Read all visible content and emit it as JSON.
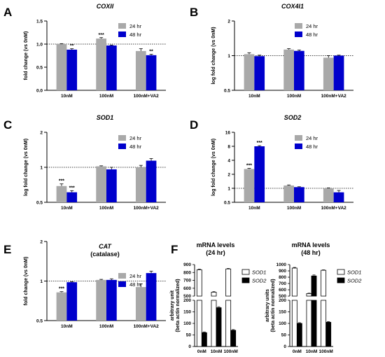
{
  "colors": {
    "series_24hr": "#a9a9a9",
    "series_48hr": "#0000cc",
    "sod1_fill": "#ffffff",
    "sod2_fill": "#000000"
  },
  "chart_data": [
    {
      "panel": "A",
      "type": "bar",
      "title": "COXII",
      "ylabel": "fold change (vs 0nM)",
      "scale": "linear",
      "ylim": [
        0.0,
        1.5
      ],
      "yticks": [
        "0.0",
        "0.5",
        "1.0",
        "1.5"
      ],
      "reference_line": 1.0,
      "categories": [
        "10nM",
        "100nM",
        "100nM+VA2"
      ],
      "series": [
        {
          "name": "24 hr",
          "values": [
            1.0,
            1.12,
            0.85
          ],
          "errors": [
            0.01,
            0.02,
            0.05
          ],
          "stars": [
            "",
            "***",
            ""
          ]
        },
        {
          "name": "48 hr",
          "values": [
            0.88,
            0.97,
            0.76
          ],
          "errors": [
            0.02,
            0.01,
            0.02
          ],
          "stars": [
            "**",
            "",
            "**"
          ]
        }
      ],
      "legend": "top-right"
    },
    {
      "panel": "B",
      "type": "bar",
      "title": "COX4I1",
      "ylabel": "log fold change (vs 0nM)",
      "scale": "log2",
      "ylim": [
        0.5,
        2
      ],
      "yticks": [
        "0.5",
        "1",
        "2"
      ],
      "reference_line": 1.0,
      "categories": [
        "10nM",
        "100nM",
        "100nM+VA2"
      ],
      "series": [
        {
          "name": "24 hr",
          "values": [
            1.03,
            1.13,
            0.96
          ],
          "errors": [
            0.03,
            0.02,
            0.04
          ],
          "stars": [
            "",
            "",
            ""
          ]
        },
        {
          "name": "48 hr",
          "values": [
            0.99,
            1.1,
            1.0
          ],
          "errors": [
            0.02,
            0.02,
            0.01
          ],
          "stars": [
            "",
            "",
            ""
          ]
        }
      ],
      "legend": "top-right"
    },
    {
      "panel": "C",
      "type": "bar",
      "title": "SOD1",
      "ylabel": "log fold change (vs 0nM)",
      "scale": "log2",
      "ylim": [
        0.5,
        2
      ],
      "yticks": [
        "0.5",
        "1",
        "2"
      ],
      "reference_line": 1.0,
      "categories": [
        "10nM",
        "100nM",
        "100nM+VA2"
      ],
      "series": [
        {
          "name": "24 hr",
          "values": [
            0.69,
            1.02,
            1.0
          ],
          "errors": [
            0.03,
            0.01,
            0.04
          ],
          "stars": [
            "***",
            "",
            ""
          ]
        },
        {
          "name": "48 hr",
          "values": [
            0.61,
            0.96,
            1.14
          ],
          "errors": [
            0.02,
            0.04,
            0.05
          ],
          "stars": [
            "***",
            "",
            ""
          ]
        }
      ],
      "legend": "top-right"
    },
    {
      "panel": "D",
      "type": "bar",
      "title": "SOD2",
      "ylabel": "log fold change (vs 0nM)",
      "scale": "log2",
      "ylim": [
        0.5,
        16
      ],
      "yticks": [
        "0.5",
        "1",
        "2",
        "4",
        "8",
        "16"
      ],
      "reference_line": 1.0,
      "categories": [
        "10nM",
        "100nM",
        "100nM+VA2"
      ],
      "series": [
        {
          "name": "24 hr",
          "values": [
            2.6,
            1.15,
            1.0
          ],
          "errors": [
            0.08,
            0.03,
            0.02
          ],
          "stars": [
            "***",
            "",
            ""
          ]
        },
        {
          "name": "48 hr",
          "values": [
            8.0,
            1.06,
            0.82
          ],
          "errors": [
            0.25,
            0.02,
            0.08
          ],
          "stars": [
            "***",
            "",
            ""
          ]
        }
      ],
      "legend": "top-right"
    },
    {
      "panel": "E",
      "type": "bar",
      "title": "CAT",
      "subtitle": "(catalase)",
      "ylabel": "fold change (vs 0nM)",
      "scale": "log2",
      "ylim": [
        0.5,
        2
      ],
      "yticks": [
        "0.5",
        "1",
        "2"
      ],
      "reference_line": 1.0,
      "categories": [
        "10nM",
        "100nM",
        "100nM+VA2"
      ],
      "series": [
        {
          "name": "24 hr",
          "values": [
            0.82,
            1.02,
            0.9
          ],
          "errors": [
            0.01,
            0.01,
            0.05
          ],
          "stars": [
            "***",
            "",
            ""
          ]
        },
        {
          "name": "48 hr",
          "values": [
            0.98,
            1.02,
            1.15
          ],
          "errors": [
            0.01,
            0.02,
            0.04
          ],
          "stars": [
            "",
            "",
            ""
          ]
        }
      ],
      "legend": "top-right"
    },
    {
      "panel": "F",
      "type": "bar",
      "title": "mRNA levels",
      "subtitle": "(24 hr)",
      "ylabel": "arbitrary unit",
      "ylabel2": "(beta actin normalized)",
      "scale": "broken",
      "ylim": [
        0,
        900
      ],
      "break": [
        200,
        500
      ],
      "yticks_lower": [
        "0",
        "50",
        "100",
        "150",
        "200"
      ],
      "yticks_upper": [
        "500",
        "600",
        "700",
        "800",
        "900"
      ],
      "categories": [
        "0nM",
        "10nM",
        "100nM"
      ],
      "xlabel": "[1,25D",
      "xlabel_sub": "3",
      "xlabel_end": "]",
      "series": [
        {
          "name": "SOD1",
          "values": [
            835,
            550,
            845
          ],
          "errors": [
            8,
            6,
            6
          ]
        },
        {
          "name": "SOD2",
          "values": [
            60,
            168,
            70
          ],
          "errors": [
            3,
            4,
            3
          ]
        }
      ],
      "legend": "top-right"
    },
    {
      "panel": "",
      "type": "bar",
      "title": "mRNA levels",
      "subtitle": "(48 hr)",
      "ylabel": "arbitrary units",
      "ylabel2": "(beta actin normalized)",
      "scale": "broken",
      "ylim": [
        0,
        1000
      ],
      "break": [
        200,
        500
      ],
      "yticks_lower": [
        "0",
        "50",
        "100",
        "150",
        "200"
      ],
      "yticks_upper": [
        "500",
        "600",
        "700",
        "800",
        "900",
        "1000"
      ],
      "categories": [
        "0nM",
        "10nM",
        "100nM"
      ],
      "xlabel": "[1,25D",
      "xlabel_sub": "3",
      "xlabel_end": "]",
      "series": [
        {
          "name": "SOD1",
          "values": [
            945,
            540,
            910
          ],
          "errors": [
            10,
            6,
            6
          ]
        },
        {
          "name": "SOD2",
          "values": [
            100,
            820,
            105
          ],
          "errors": [
            3,
            15,
            3
          ]
        }
      ],
      "legend": "top-right"
    }
  ]
}
